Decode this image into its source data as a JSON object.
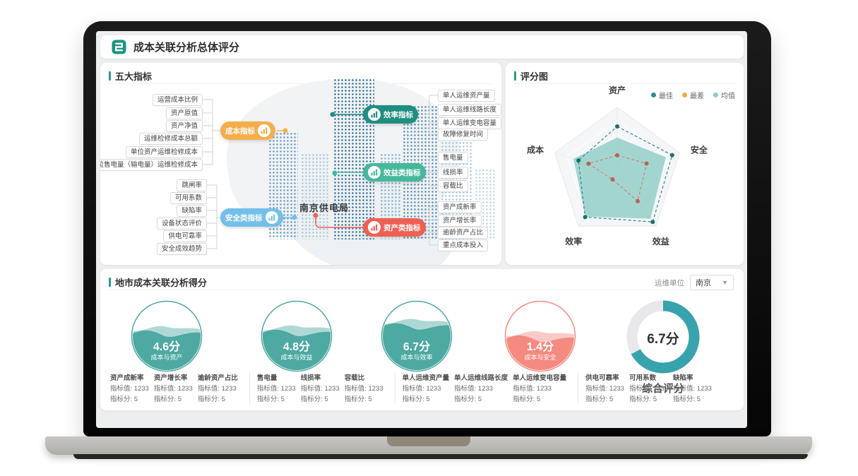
{
  "header": {
    "title": "成本关联分析总体评分"
  },
  "indicators_panel": {
    "title": "五大指标",
    "center_label": "南京供电局",
    "nodes": [
      {
        "label": "成本指标",
        "color": "#f5ae4c",
        "leaves": [
          "运营成本比例",
          "资产原值",
          "资产净值",
          "运维检修成本总额",
          "单位资产运维检修成本",
          "单位售电量（输电量）运维检修成本"
        ]
      },
      {
        "label": "安全类指标",
        "color": "#74bfe9",
        "leaves": [
          "跳闸率",
          "可用系数",
          "缺陷率",
          "设备状态评价",
          "供电可靠率",
          "安全成效趋势"
        ]
      },
      {
        "label": "效率指标",
        "color": "#1e8e80",
        "leaves": [
          "单人运维资产量",
          "单人运维线路长度",
          "单人运维变电容量",
          "故障修复时间"
        ]
      },
      {
        "label": "效益类指标",
        "color": "#46b89b",
        "leaves": [
          "售电量",
          "线损率",
          "容载比"
        ]
      },
      {
        "label": "资产类指标",
        "color": "#ef6054",
        "leaves": [
          "资产成新率",
          "资产增长率",
          "逾龄资产占比",
          "重点成本投入"
        ]
      }
    ]
  },
  "score_panel": {
    "title": "评分图"
  },
  "city_panel": {
    "title": "地市成本关联分析得分",
    "unit_label": "运维单位",
    "unit_value": "南京",
    "stats_groups": [
      {
        "items": [
          {
            "name": "资产成新率",
            "value": "指标值: 1233",
            "score": "指标分: 5"
          },
          {
            "name": "资产增长率",
            "value": "指标值: 1233",
            "score": "指标分: 5"
          },
          {
            "name": "逾龄资产占比",
            "value": "指标值: 1233",
            "score": "指标分: 5"
          }
        ]
      },
      {
        "items": [
          {
            "name": "售电量",
            "value": "指标值: 1233",
            "score": "指标分: 5"
          },
          {
            "name": "线损率",
            "value": "指标值: 1233",
            "score": "指标分: 5"
          },
          {
            "name": "容载比",
            "value": "指标值: 1233",
            "score": "指标分: 5"
          }
        ]
      },
      {
        "items": [
          {
            "name": "单人运维资产量",
            "value": "指标值: 1233",
            "score": "指标分: 5"
          },
          {
            "name": "单人运维线路长度",
            "value": "指标值: 1233",
            "score": "指标分: 5"
          },
          {
            "name": "单人运维变电容量",
            "value": "指标值: 1233",
            "score": "指标分: 5"
          }
        ]
      },
      {
        "items": [
          {
            "name": "供电可靠率",
            "value": "指标值: 1233",
            "score": "指标分: 5"
          },
          {
            "name": "可用系数",
            "value": "指标值: 1233",
            "score": "指标分: 5"
          },
          {
            "name": "缺陷率",
            "value": "指标值: 1233",
            "score": "指标分: 5"
          }
        ]
      }
    ]
  },
  "chart_data": [
    {
      "type": "radar",
      "title": "评分图",
      "categories": [
        "资产",
        "安全",
        "效益",
        "效率",
        "成本"
      ],
      "range": [
        0,
        1
      ],
      "legend_position": "top-right",
      "grid": "pentagon",
      "series": [
        {
          "name": "最佳",
          "legend_color": "#2e8b8b",
          "line_color": "#2e8b8b",
          "point_color": "#1d6f6a",
          "style": "dashed",
          "values": [
            0.71,
            0.88,
            0.92,
            0.83,
            0.62
          ]
        },
        {
          "name": "最差",
          "legend_color": "#f3a73e",
          "line_color": "#c98272",
          "point_color": "#bf6053",
          "style": "dashed",
          "values": [
            0.27,
            0.47,
            0.53,
            0.12,
            0.46
          ]
        },
        {
          "name": "均值",
          "legend_color": "#8ecdc6",
          "fill_color": "#8ecdc6",
          "style": "area",
          "values": [
            0.54,
            0.78,
            0.86,
            0.82,
            0.7
          ]
        }
      ]
    },
    {
      "type": "liquid-gauge",
      "items": [
        {
          "value": "4.6分",
          "label": "成本与资产",
          "score": 4.6,
          "fill_percent": 52,
          "color": "#4da9a2"
        },
        {
          "value": "4.8分",
          "label": "成本与效益",
          "score": 4.8,
          "fill_percent": 53,
          "color": "#4da9a2"
        },
        {
          "value": "6.7分",
          "label": "成本与效率",
          "score": 6.7,
          "fill_percent": 62,
          "color": "#4da9a2"
        },
        {
          "value": "1.4分",
          "label": "成本与安全",
          "score": 1.4,
          "fill_percent": 45,
          "color": "#f48a80"
        }
      ]
    },
    {
      "type": "donut",
      "value": "6.7分",
      "label": "综合评分",
      "percent": 67,
      "color": "#39a3ad",
      "track_color": "#e8e8ea"
    }
  ]
}
